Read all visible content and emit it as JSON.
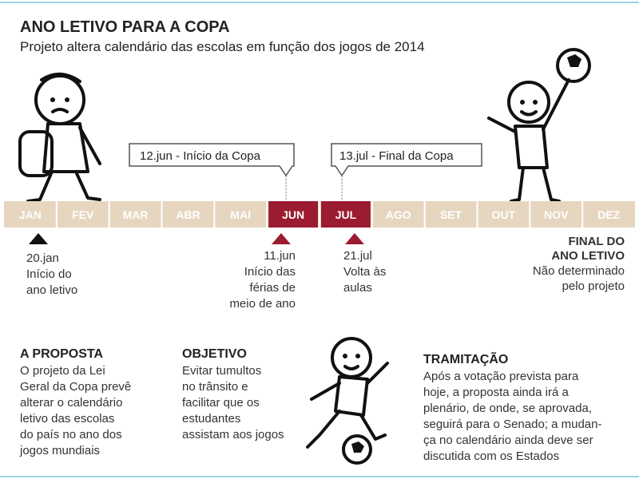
{
  "header": {
    "title": "ANO LETIVO PARA A COPA",
    "subtitle": "Projeto altera calendário das escolas em função dos jogos de 2014"
  },
  "timeline": {
    "months": [
      "JAN",
      "FEV",
      "MAR",
      "ABR",
      "MAI",
      "JUN",
      "JUL",
      "AGO",
      "SET",
      "OUT",
      "NOV",
      "DEZ"
    ]
  },
  "callouts": [
    "12.jun - Início da Copa",
    "13.jul - Final da Copa"
  ],
  "markers": [
    {
      "date": "20.jan",
      "lines": [
        "Início do",
        "ano letivo"
      ]
    },
    {
      "date": "11.jun",
      "lines": [
        "Início das",
        "férias de",
        "meio de ano"
      ]
    },
    {
      "date": "21.jul",
      "lines": [
        "Volta às",
        "aulas"
      ]
    },
    {
      "heading": [
        "FINAL DO",
        "ANO LETIVO"
      ],
      "lines": [
        "Não determinado",
        "pelo projeto"
      ]
    }
  ],
  "sections": [
    {
      "heading": "A PROPOSTA",
      "lines": [
        "O projeto da Lei",
        "Geral da Copa prevê",
        "alterar o calendário",
        "letivo das escolas",
        "do país no ano dos",
        "jogos mundiais"
      ]
    },
    {
      "heading": "OBJETIVO",
      "lines": [
        "Evitar tumultos",
        "no trânsito e",
        "facilitar que os",
        "estudantes",
        "assistam aos jogos"
      ]
    },
    {
      "heading": "TRAMITAÇÃO",
      "lines": [
        "Após a votação prevista para",
        "hoje, a proposta ainda irá a",
        "plenário, de onde, se aprovada,",
        "seguirá para o Senado; a mudan-",
        "ça no calendário ainda deve ser",
        "discutida com os Estados"
      ]
    }
  ]
}
